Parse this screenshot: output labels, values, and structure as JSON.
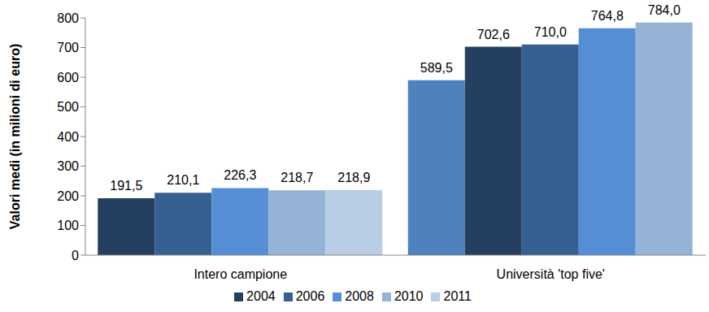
{
  "chart_data": {
    "type": "bar",
    "y_label": "Valori medi (in milioni di euro)",
    "categories": [
      "Intero campione",
      "Università 'top five'"
    ],
    "series": [
      {
        "name": "2004",
        "color": "#243f60",
        "colors": [
          "#243f60",
          "#4f81bd"
        ],
        "values": [
          191.5,
          589.5
        ],
        "value_labels": [
          "191,5",
          "589,5"
        ]
      },
      {
        "name": "2006",
        "color": "#376092",
        "colors": [
          "#376092",
          "#243f60"
        ],
        "values": [
          210.1,
          702.6
        ],
        "value_labels": [
          "210,1",
          "702,6"
        ]
      },
      {
        "name": "2008",
        "color": "#558ed5",
        "colors": [
          "#558ed5",
          "#376092"
        ],
        "values": [
          226.3,
          710.0
        ],
        "value_labels": [
          "226,3",
          "710,0"
        ]
      },
      {
        "name": "2010",
        "color": "#95b3d7",
        "colors": [
          "#95b3d7",
          "#558ed5"
        ],
        "values": [
          218.7,
          764.8
        ],
        "value_labels": [
          "218,7",
          "764,8"
        ]
      },
      {
        "name": "2011",
        "color": "#b9cde5",
        "colors": [
          "#b9cde5",
          "#95b3d7"
        ],
        "values": [
          218.9,
          784.0
        ],
        "value_labels": [
          "218,9",
          "784,0"
        ]
      }
    ],
    "ylim": [
      0,
      800
    ],
    "yticks": [
      0,
      100,
      200,
      300,
      400,
      500,
      600,
      700,
      800
    ],
    "grid": false,
    "data_labels": true,
    "legend": "bottom"
  }
}
